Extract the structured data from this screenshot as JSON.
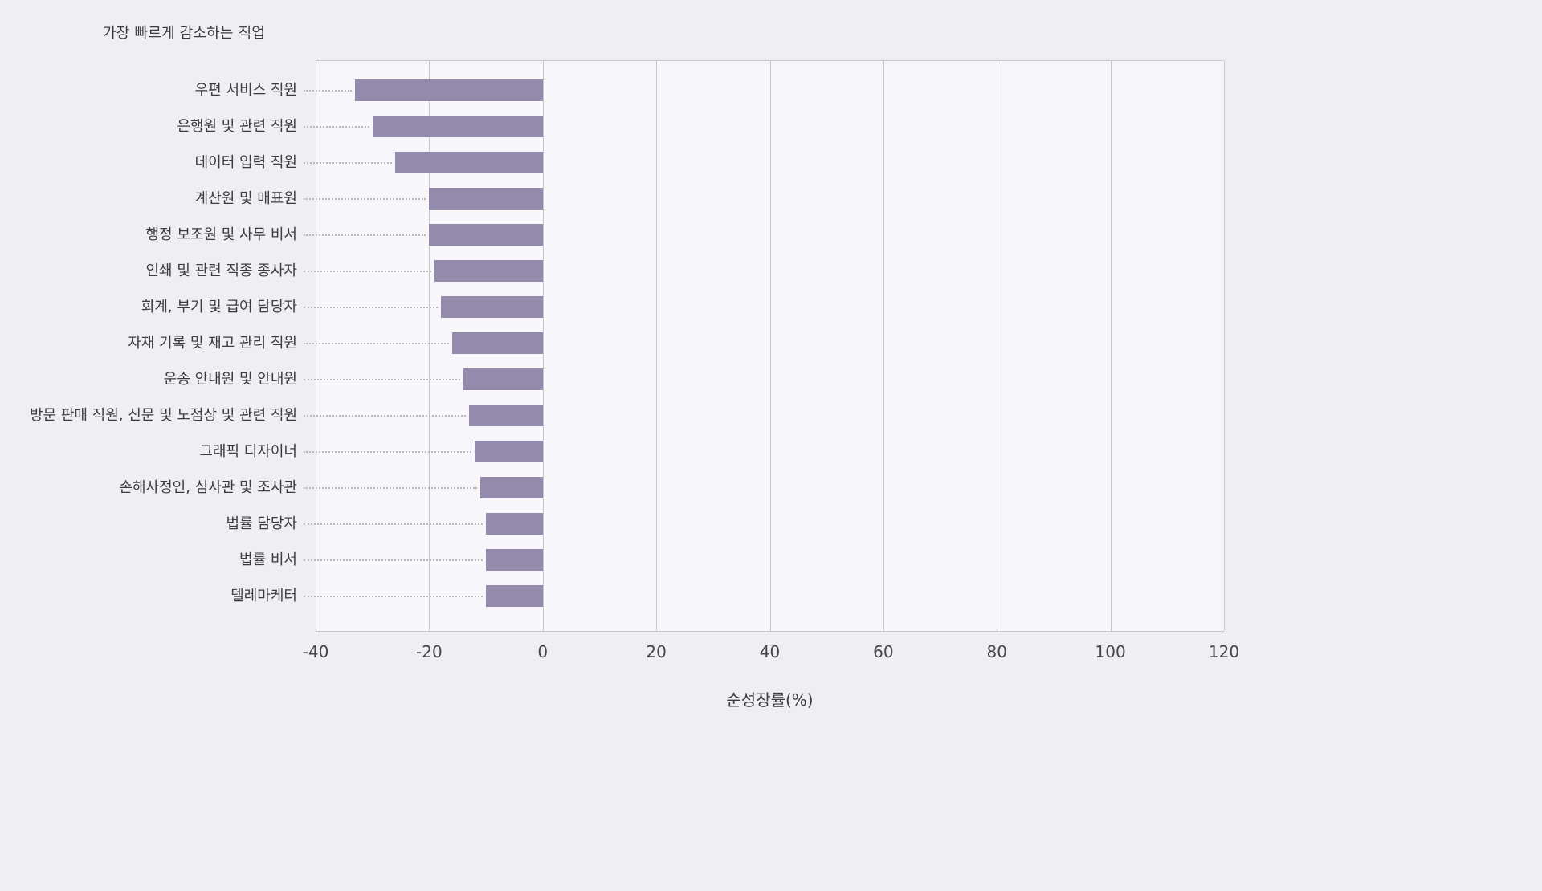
{
  "chart_data": {
    "type": "bar",
    "orientation": "horizontal",
    "title": "가장 빠르게 감소하는 직업",
    "xlabel": "순성장률(%)",
    "ylabel": "",
    "xlim": [
      -40,
      120
    ],
    "ticks": [
      -40,
      -20,
      0,
      20,
      40,
      60,
      80,
      100,
      120
    ],
    "grid": true,
    "legend": null,
    "categories": [
      "우편 서비스 직원",
      "은행원 및 관련 직원",
      "데이터 입력 직원",
      "계산원 및 매표원",
      "행정 보조원 및 사무 비서",
      "인쇄 및 관련 직종 종사자",
      "회계, 부기 및 급여 담당자",
      "자재 기록 및 재고 관리 직원",
      "운송 안내원 및 안내원",
      "방문 판매 직원, 신문 및 노점상 및 관련 직원",
      "그래픽 디자이너",
      "손해사정인, 심사관 및 조사관",
      "법률 담당자",
      "법률 비서",
      "텔레마케터"
    ],
    "values": [
      -33,
      -30,
      -26,
      -20,
      -20,
      -19,
      -18,
      -16,
      -14,
      -13,
      -12,
      -11,
      -10,
      -10,
      -10
    ],
    "colors": {
      "bar": "#948bac",
      "grid": "#c7c5cd",
      "plot_bg": "#f7f6fa",
      "page_bg": "#efeef2",
      "text": "#3c3b40",
      "leader_dots": "#bab7bf"
    }
  }
}
